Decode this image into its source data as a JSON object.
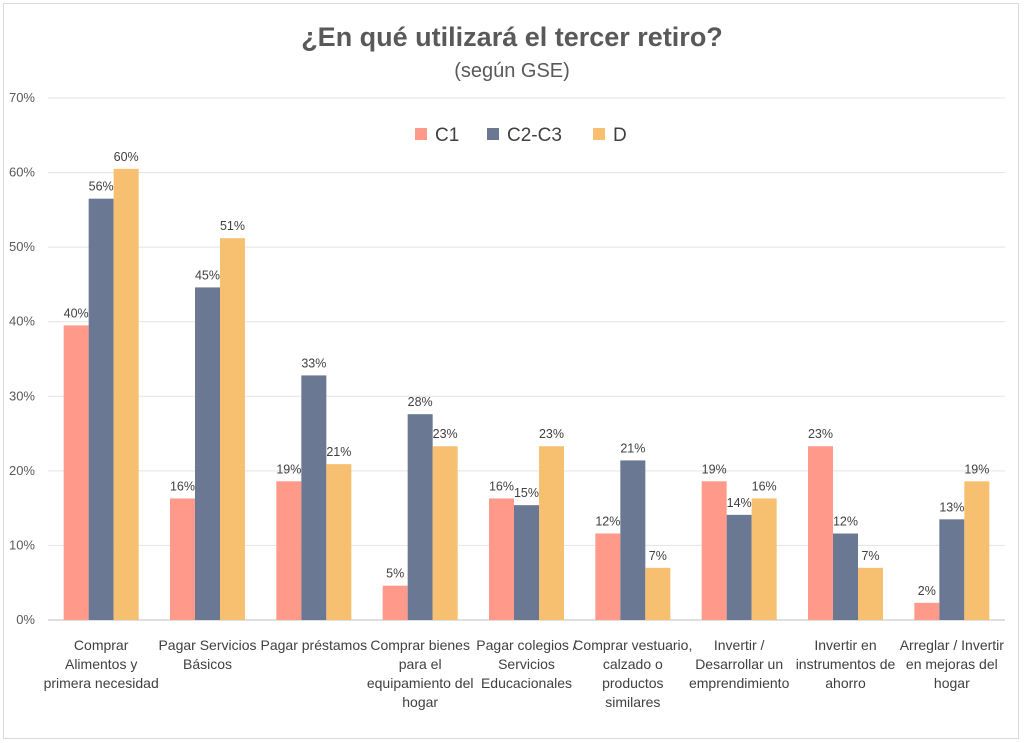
{
  "chart_data": {
    "type": "bar",
    "title": "¿En qué utilizará el tercer retiro?",
    "subtitle": "(según GSE)",
    "xlabel": "",
    "ylabel": "",
    "ylim": [
      0,
      70
    ],
    "yticks": [
      0,
      10,
      20,
      30,
      40,
      50,
      60,
      70
    ],
    "ytick_labels": [
      "0%",
      "10%",
      "20%",
      "30%",
      "40%",
      "50%",
      "60%",
      "70%"
    ],
    "grid": true,
    "legend_position": "top-center",
    "categories": [
      [
        "Comprar",
        "Alimentos y",
        "primera necesidad"
      ],
      [
        "Pagar Servicios",
        "Básicos"
      ],
      [
        "Pagar préstamos"
      ],
      [
        "Comprar bienes",
        "para el",
        "equipamiento del",
        "hogar"
      ],
      [
        "Pagar colegios /",
        "Servicios",
        "Educacionales"
      ],
      [
        "Comprar vestuario,",
        "calzado o",
        "productos",
        "similares"
      ],
      [
        "Invertir /",
        "Desarrollar un",
        "emprendimiento"
      ],
      [
        "Invertir en",
        "instrumentos de",
        "ahorro"
      ],
      [
        "Arreglar / Invertir",
        "en mejoras del",
        "hogar"
      ]
    ],
    "series": [
      {
        "name": "C1",
        "color": "#ff9a8b",
        "values": [
          39.5,
          16.3,
          18.6,
          4.6,
          16.3,
          11.6,
          18.6,
          23.3,
          2.3
        ],
        "labels": [
          "40%",
          "16%",
          "19%",
          "5%",
          "16%",
          "12%",
          "19%",
          "23%",
          "2%"
        ]
      },
      {
        "name": "C2-C3",
        "color": "#6b7893",
        "values": [
          56.5,
          44.6,
          32.8,
          27.6,
          15.4,
          21.4,
          14.1,
          11.6,
          13.5
        ],
        "labels": [
          "56%",
          "45%",
          "33%",
          "28%",
          "15%",
          "21%",
          "14%",
          "12%",
          "13%"
        ]
      },
      {
        "name": "D",
        "color": "#f7bf70",
        "values": [
          60.5,
          51.2,
          20.9,
          23.3,
          23.3,
          7.0,
          16.3,
          7.0,
          18.6
        ],
        "labels": [
          "60%",
          "51%",
          "21%",
          "23%",
          "23%",
          "7%",
          "16%",
          "7%",
          "19%"
        ]
      }
    ]
  }
}
